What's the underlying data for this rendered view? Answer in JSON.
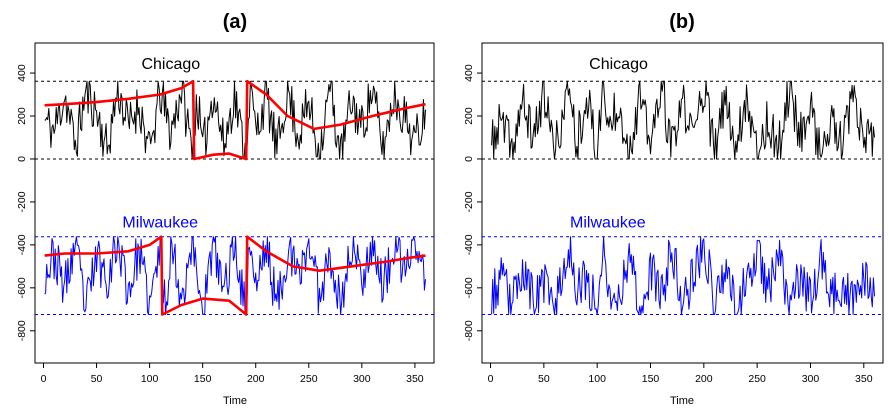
{
  "chart_data": [
    {
      "type": "line",
      "title": "(a)",
      "xlabel": "Time",
      "ylabel": "",
      "xlim": [
        -8,
        368
      ],
      "ylim": [
        -950,
        540
      ],
      "xticks": [
        0,
        50,
        100,
        150,
        200,
        250,
        300,
        350
      ],
      "yticks": [
        -800,
        -600,
        -400,
        -200,
        0,
        200,
        400
      ],
      "grid": false,
      "reference_lines": [
        {
          "y": 362,
          "color": "#000000",
          "style": "dashed"
        },
        {
          "y": 0,
          "color": "#000000",
          "style": "dashed"
        },
        {
          "y": -362,
          "color": "#0000ff",
          "style": "dashed"
        },
        {
          "y": -724,
          "color": "#0000ff",
          "style": "dashed"
        }
      ],
      "series": [
        {
          "name": "Chicago",
          "color": "#000000",
          "seed": 11,
          "points": [
            [
              1,
              180
            ],
            [
              10,
              130
            ],
            [
              20,
              300
            ],
            [
              30,
              60
            ],
            [
              40,
              310
            ],
            [
              50,
              220
            ],
            [
              60,
              40
            ],
            [
              70,
              330
            ],
            [
              80,
              150
            ],
            [
              90,
              260
            ],
            [
              100,
              20
            ],
            [
              110,
              310
            ],
            [
              120,
              120
            ],
            [
              130,
              330
            ],
            [
              140,
              40
            ],
            [
              145,
              280
            ],
            [
              150,
              30
            ],
            [
              160,
              320
            ],
            [
              170,
              60
            ],
            [
              180,
              300
            ],
            [
              190,
              20
            ],
            [
              195,
              350
            ],
            [
              200,
              120
            ],
            [
              210,
              300
            ],
            [
              220,
              30
            ],
            [
              230,
              330
            ],
            [
              240,
              110
            ],
            [
              250,
              260
            ],
            [
              260,
              20
            ],
            [
              270,
              340
            ],
            [
              280,
              0
            ],
            [
              290,
              270
            ],
            [
              300,
              150
            ],
            [
              310,
              320
            ],
            [
              320,
              40
            ],
            [
              330,
              300
            ],
            [
              340,
              200
            ],
            [
              350,
              80
            ],
            [
              360,
              230
            ]
          ]
        },
        {
          "name": "Chicago smooth",
          "color": "#ff0000",
          "points": [
            [
              1,
              250
            ],
            [
              20,
              255
            ],
            [
              50,
              265
            ],
            [
              80,
              280
            ],
            [
              110,
              300
            ],
            [
              130,
              330
            ],
            [
              141,
              362
            ],
            [
              142,
              0
            ],
            [
              160,
              20
            ],
            [
              175,
              25
            ],
            [
              191,
              0
            ],
            [
              192,
              362
            ],
            [
              210,
              300
            ],
            [
              230,
              200
            ],
            [
              255,
              140
            ],
            [
              280,
              160
            ],
            [
              310,
              200
            ],
            [
              340,
              235
            ],
            [
              360,
              255
            ]
          ]
        },
        {
          "name": "Milwaukee",
          "color": "#0000ff",
          "seed": 23,
          "points": [
            [
              1,
              -540
            ],
            [
              10,
              -450
            ],
            [
              20,
              -600
            ],
            [
              30,
              -400
            ],
            [
              40,
              -700
            ],
            [
              50,
              -450
            ],
            [
              60,
              -550
            ],
            [
              70,
              -380
            ],
            [
              80,
              -620
            ],
            [
              90,
              -420
            ],
            [
              100,
              -700
            ],
            [
              110,
              -400
            ],
            [
              115,
              -720
            ],
            [
              120,
              -380
            ],
            [
              130,
              -650
            ],
            [
              140,
              -380
            ],
            [
              150,
              -700
            ],
            [
              160,
              -400
            ],
            [
              170,
              -620
            ],
            [
              180,
              -380
            ],
            [
              190,
              -700
            ],
            [
              195,
              -370
            ],
            [
              200,
              -600
            ],
            [
              210,
              -400
            ],
            [
              220,
              -690
            ],
            [
              230,
              -420
            ],
            [
              240,
              -560
            ],
            [
              250,
              -380
            ],
            [
              260,
              -640
            ],
            [
              270,
              -420
            ],
            [
              280,
              -700
            ],
            [
              290,
              -400
            ],
            [
              300,
              -550
            ],
            [
              310,
              -380
            ],
            [
              320,
              -600
            ],
            [
              330,
              -420
            ],
            [
              340,
              -520
            ],
            [
              350,
              -380
            ],
            [
              360,
              -560
            ]
          ]
        },
        {
          "name": "Milwaukee smooth",
          "color": "#ff0000",
          "points": [
            [
              1,
              -450
            ],
            [
              20,
              -440
            ],
            [
              50,
              -440
            ],
            [
              80,
              -430
            ],
            [
              100,
              -400
            ],
            [
              111,
              -362
            ],
            [
              112,
              -724
            ],
            [
              130,
              -680
            ],
            [
              150,
              -650
            ],
            [
              175,
              -660
            ],
            [
              191,
              -724
            ],
            [
              192,
              -362
            ],
            [
              210,
              -430
            ],
            [
              235,
              -500
            ],
            [
              260,
              -520
            ],
            [
              290,
              -500
            ],
            [
              320,
              -480
            ],
            [
              345,
              -460
            ],
            [
              360,
              -450
            ]
          ]
        }
      ],
      "annotations": [
        {
          "text": "Chicago",
          "x": 120,
          "y": 420,
          "color": "#000000"
        },
        {
          "text": "Milwaukee",
          "x": 110,
          "y": -320,
          "color": "#0000ff"
        }
      ]
    },
    {
      "type": "line",
      "title": "(b)",
      "xlabel": "Time",
      "ylabel": "",
      "xlim": [
        -8,
        368
      ],
      "ylim": [
        -950,
        540
      ],
      "xticks": [
        0,
        50,
        100,
        150,
        200,
        250,
        300,
        350
      ],
      "yticks": [
        -800,
        -600,
        -400,
        -200,
        0,
        200,
        400
      ],
      "grid": false,
      "reference_lines": [
        {
          "y": 362,
          "color": "#000000",
          "style": "dashed"
        },
        {
          "y": 0,
          "color": "#000000",
          "style": "dashed"
        },
        {
          "y": -362,
          "color": "#0000ff",
          "style": "dashed"
        },
        {
          "y": -724,
          "color": "#0000ff",
          "style": "dashed"
        }
      ],
      "series": [
        {
          "name": "Chicago",
          "color": "#000000",
          "seed": 37,
          "points": [
            [
              1,
              60
            ],
            [
              10,
              180
            ],
            [
              20,
              40
            ],
            [
              30,
              260
            ],
            [
              40,
              100
            ],
            [
              50,
              320
            ],
            [
              60,
              30
            ],
            [
              70,
              240
            ],
            [
              75,
              350
            ],
            [
              80,
              60
            ],
            [
              90,
              300
            ],
            [
              100,
              20
            ],
            [
              105,
              360
            ],
            [
              110,
              140
            ],
            [
              120,
              280
            ],
            [
              130,
              30
            ],
            [
              140,
              300
            ],
            [
              150,
              60
            ],
            [
              160,
              340
            ],
            [
              170,
              40
            ],
            [
              180,
              260
            ],
            [
              190,
              100
            ],
            [
              200,
              350
            ],
            [
              210,
              20
            ],
            [
              220,
              280
            ],
            [
              230,
              60
            ],
            [
              240,
              300
            ],
            [
              250,
              30
            ],
            [
              260,
              180
            ],
            [
              270,
              40
            ],
            [
              280,
              330
            ],
            [
              290,
              120
            ],
            [
              300,
              240
            ],
            [
              310,
              20
            ],
            [
              320,
              160
            ],
            [
              330,
              60
            ],
            [
              340,
              280
            ],
            [
              350,
              80
            ],
            [
              360,
              100
            ]
          ]
        },
        {
          "name": "Milwaukee",
          "color": "#0000ff",
          "seed": 53,
          "points": [
            [
              1,
              -640
            ],
            [
              10,
              -560
            ],
            [
              20,
              -680
            ],
            [
              30,
              -500
            ],
            [
              40,
              -660
            ],
            [
              50,
              -580
            ],
            [
              60,
              -700
            ],
            [
              70,
              -480
            ],
            [
              75,
              -380
            ],
            [
              80,
              -640
            ],
            [
              90,
              -560
            ],
            [
              100,
              -680
            ],
            [
              105,
              -380
            ],
            [
              110,
              -600
            ],
            [
              120,
              -660
            ],
            [
              130,
              -420
            ],
            [
              140,
              -700
            ],
            [
              150,
              -520
            ],
            [
              160,
              -640
            ],
            [
              170,
              -420
            ],
            [
              180,
              -680
            ],
            [
              190,
              -540
            ],
            [
              200,
              -380
            ],
            [
              210,
              -660
            ],
            [
              220,
              -500
            ],
            [
              230,
              -700
            ],
            [
              240,
              -560
            ],
            [
              250,
              -420
            ],
            [
              260,
              -640
            ],
            [
              270,
              -400
            ],
            [
              280,
              -680
            ],
            [
              290,
              -560
            ],
            [
              300,
              -660
            ],
            [
              310,
              -480
            ],
            [
              320,
              -640
            ],
            [
              330,
              -600
            ],
            [
              340,
              -680
            ],
            [
              350,
              -560
            ],
            [
              360,
              -640
            ]
          ]
        }
      ],
      "annotations": [
        {
          "text": "Chicago",
          "x": 120,
          "y": 420,
          "color": "#000000"
        },
        {
          "text": "Milwaukee",
          "x": 110,
          "y": -320,
          "color": "#0000ff"
        }
      ]
    }
  ]
}
